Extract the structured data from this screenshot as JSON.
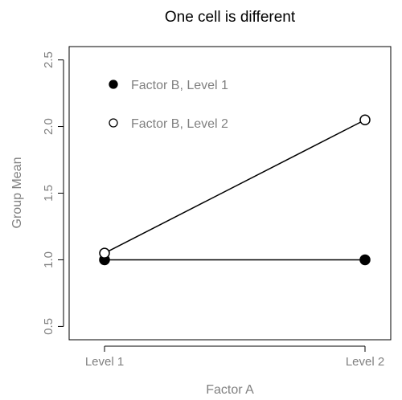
{
  "chart_data": {
    "type": "line",
    "title": "One cell is different",
    "xlabel": "Factor A",
    "ylabel": "Group Mean",
    "categories": [
      "Level 1",
      "Level 2"
    ],
    "ylim": [
      0.4,
      2.6
    ],
    "yticks": [
      "0.5",
      "1.0",
      "1.5",
      "2.0",
      "2.5"
    ],
    "grid": false,
    "legend_position": "top-left",
    "series": [
      {
        "name": "Factor B, Level 1",
        "values": [
          1.0,
          1.0
        ],
        "marker": "filled-circle",
        "color": "#000000"
      },
      {
        "name": "Factor B, Level 2",
        "values": [
          1.05,
          2.05
        ],
        "marker": "open-circle",
        "color": "#000000"
      }
    ]
  }
}
